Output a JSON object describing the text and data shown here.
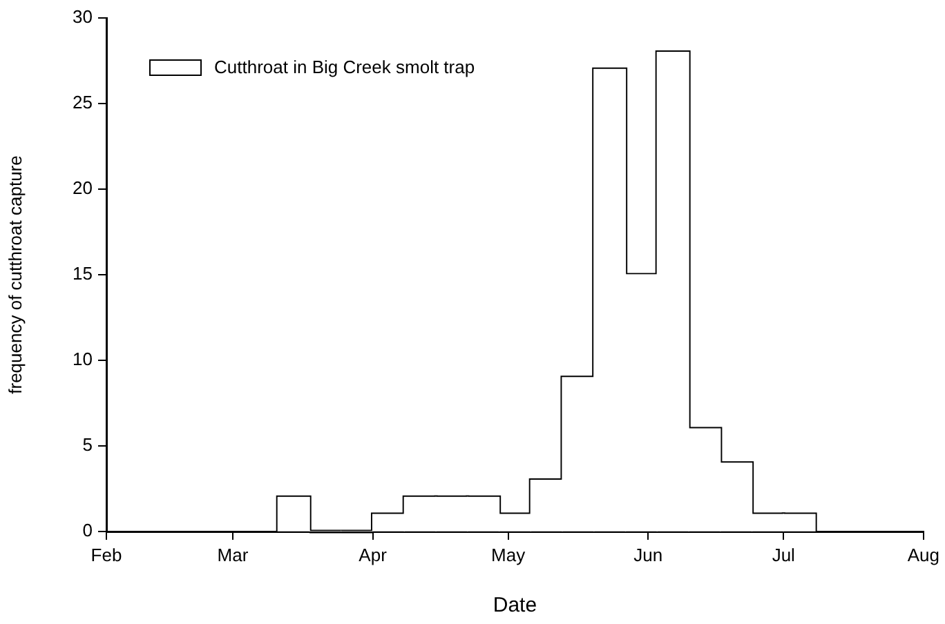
{
  "chart_data": {
    "type": "histogram",
    "xlabel": "Date",
    "ylabel": "frequency of cutthroat capture",
    "bins": [
      "--03-11",
      "--03-18",
      "--03-25",
      "--04-01",
      "--04-08",
      "--04-15",
      "--04-22",
      "--04-29",
      "--05-06",
      "--05-13",
      "--05-20",
      "--05-27",
      "--06-03",
      "--06-10",
      "--06-17",
      "--06-24",
      "--07-01",
      "--07-08"
    ],
    "series": [
      {
        "name": "Cutthroat in Big Creek smolt trap",
        "color": "#ffffff",
        "values": [
          2,
          0,
          0,
          1,
          2,
          2,
          2,
          1,
          3,
          9,
          27,
          15,
          28,
          6,
          4,
          1,
          1
        ]
      }
    ],
    "xlim": [
      "--02-01",
      "--08-01"
    ],
    "xticks": [
      {
        "value": "--02-01",
        "label": "Feb"
      },
      {
        "value": "--03-01",
        "label": "Mar"
      },
      {
        "value": "--04-01",
        "label": "Apr"
      },
      {
        "value": "--05-01",
        "label": "May"
      },
      {
        "value": "--06-01",
        "label": "Jun"
      },
      {
        "value": "--07-01",
        "label": "Jul"
      },
      {
        "value": "--08-01",
        "label": "Aug"
      }
    ],
    "ylim": [
      0,
      30
    ],
    "yticks": [
      0,
      5,
      10,
      15,
      20,
      25,
      30
    ],
    "legend": "top left"
  }
}
